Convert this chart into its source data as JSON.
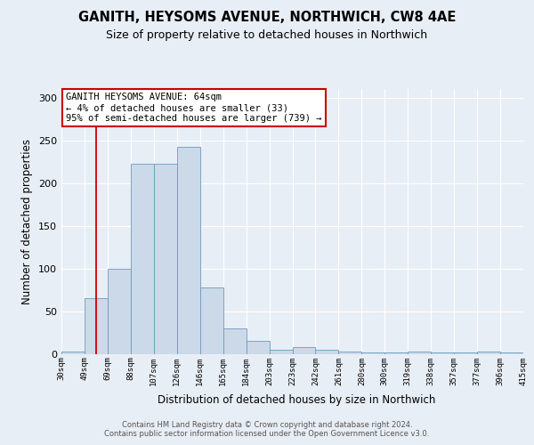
{
  "title": "GANITH, HEYSOMS AVENUE, NORTHWICH, CW8 4AE",
  "subtitle": "Size of property relative to detached houses in Northwich",
  "xlabel": "Distribution of detached houses by size in Northwich",
  "ylabel": "Number of detached properties",
  "bar_heights": [
    3,
    65,
    100,
    222,
    222,
    242,
    78,
    30,
    15,
    5,
    8,
    5,
    3,
    2,
    2,
    3,
    2,
    2,
    3,
    2
  ],
  "categories": [
    "30sqm",
    "49sqm",
    "69sqm",
    "88sqm",
    "107sqm",
    "126sqm",
    "146sqm",
    "165sqm",
    "184sqm",
    "203sqm",
    "223sqm",
    "242sqm",
    "261sqm",
    "280sqm",
    "300sqm",
    "319sqm",
    "338sqm",
    "357sqm",
    "377sqm",
    "396sqm",
    "415sqm"
  ],
  "bar_color": "#ccd9e8",
  "bar_edge_color": "#6a9bbf",
  "background_color": "#e8eef5",
  "vline_color": "#cc0000",
  "vline_pos": 1.5,
  "annotation_text": "GANITH HEYSOMS AVENUE: 64sqm\n← 4% of detached houses are smaller (33)\n95% of semi-detached houses are larger (739) →",
  "footer_text": "Contains HM Land Registry data © Crown copyright and database right 2024.\nContains public sector information licensed under the Open Government Licence v3.0.",
  "ylim": [
    0,
    310
  ],
  "yticks": [
    0,
    50,
    100,
    150,
    200,
    250,
    300
  ]
}
